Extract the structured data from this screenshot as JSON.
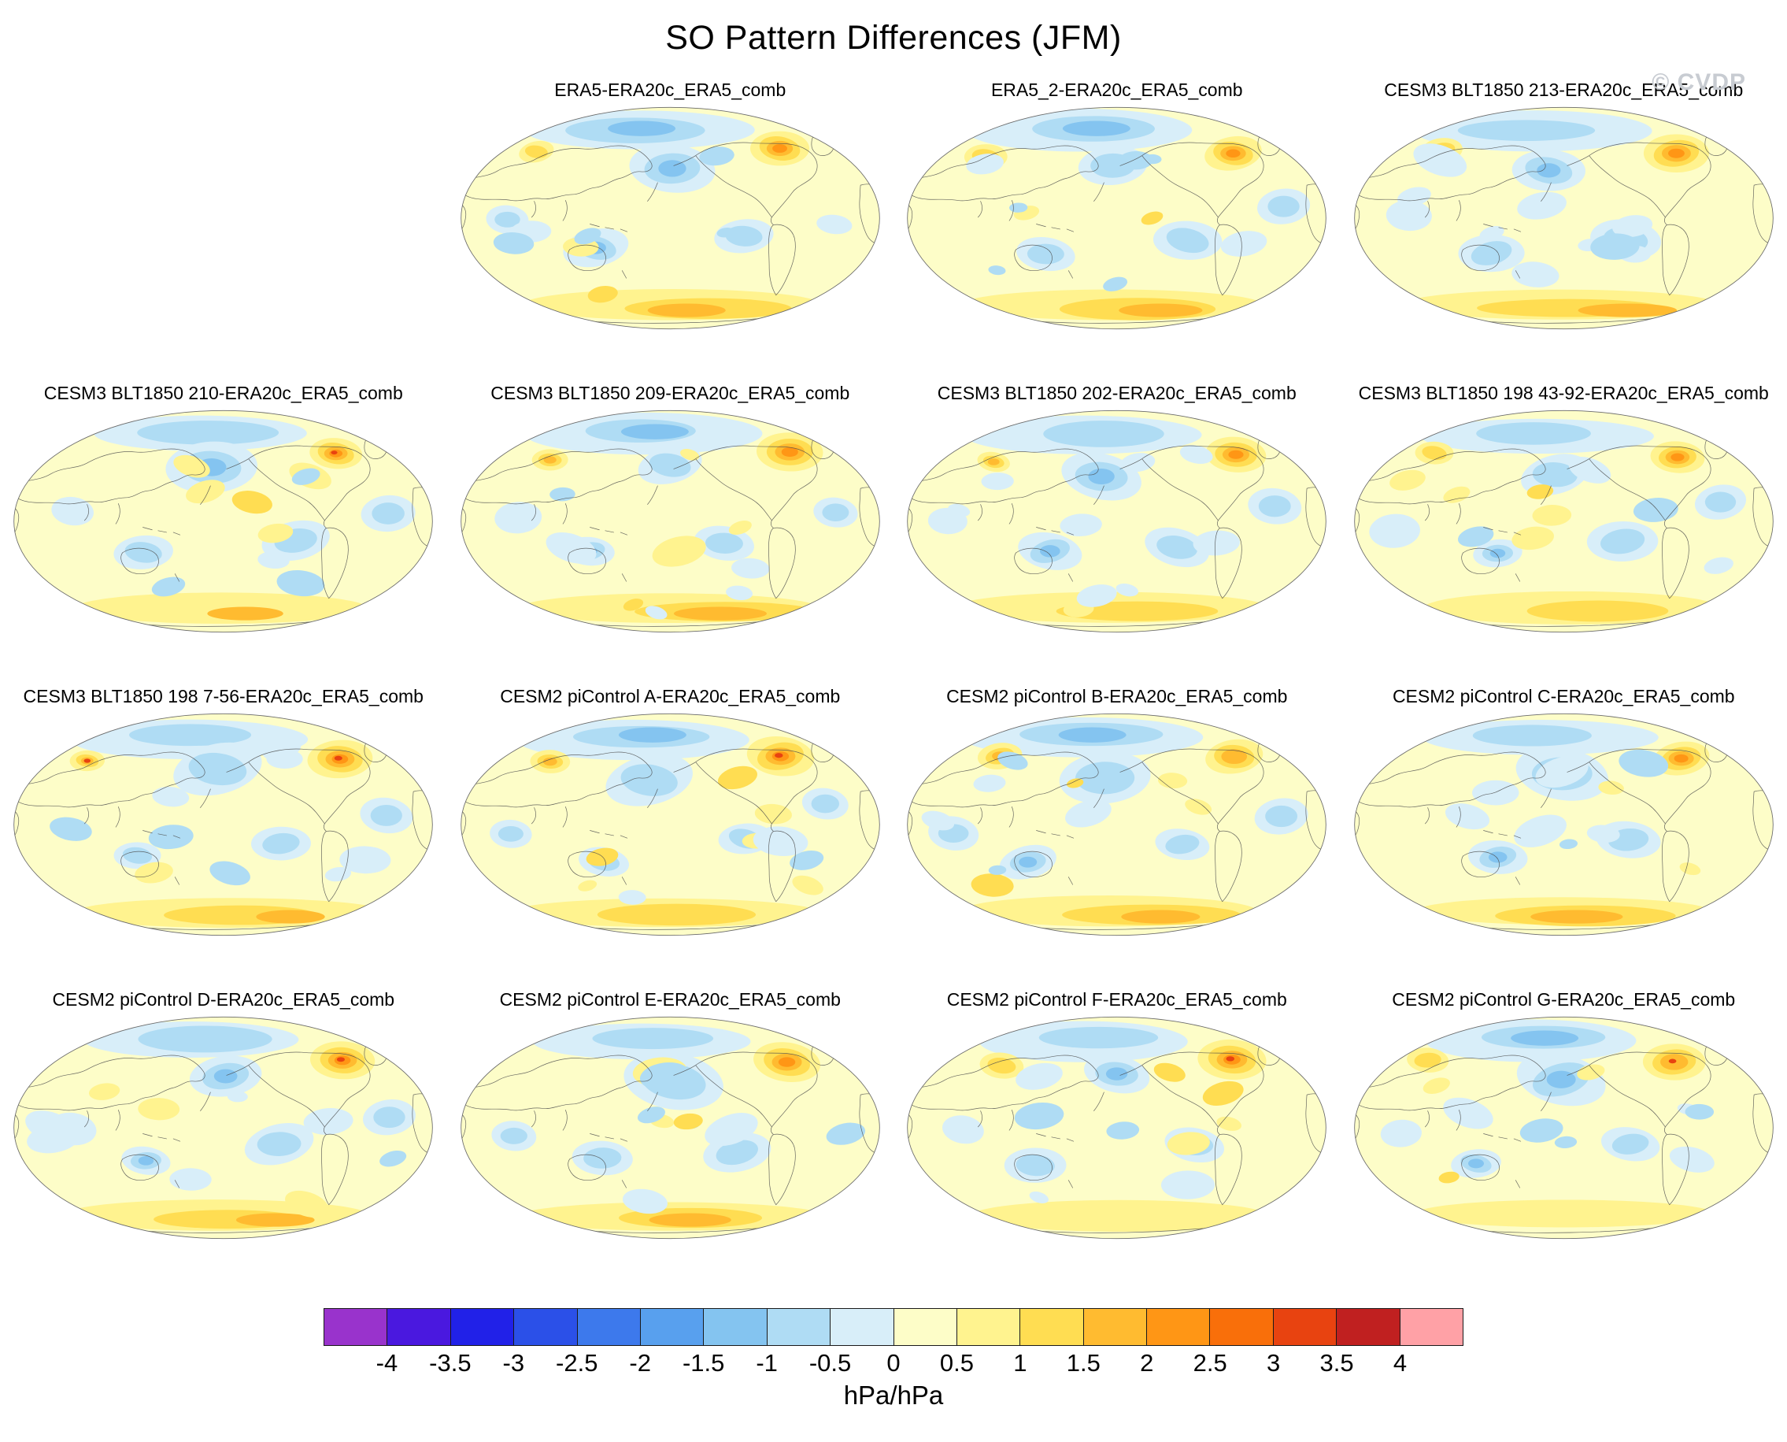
{
  "title": "SO Pattern Differences (JFM)",
  "watermark": "© CVDP",
  "units_label": "hPa/hPa",
  "panels": [
    {
      "title": "ERA5-ERA20c_ERA5_comb"
    },
    {
      "title": "ERA5_2-ERA20c_ERA5_comb"
    },
    {
      "title": "CESM3 BLT1850 213-ERA20c_ERA5_comb"
    },
    {
      "title": "CESM3 BLT1850 210-ERA20c_ERA5_comb"
    },
    {
      "title": "CESM3 BLT1850 209-ERA20c_ERA5_comb"
    },
    {
      "title": "CESM3 BLT1850 202-ERA20c_ERA5_comb"
    },
    {
      "title": "CESM3 BLT1850 198 43-92-ERA20c_ERA5_comb"
    },
    {
      "title": "CESM3 BLT1850 198 7-56-ERA20c_ERA5_comb"
    },
    {
      "title": "CESM2 piControl A-ERA20c_ERA5_comb"
    },
    {
      "title": "CESM2 piControl B-ERA20c_ERA5_comb"
    },
    {
      "title": "CESM2 piControl C-ERA20c_ERA5_comb"
    },
    {
      "title": "CESM2 piControl D-ERA20c_ERA5_comb"
    },
    {
      "title": "CESM2 piControl E-ERA20c_ERA5_comb"
    },
    {
      "title": "CESM2 piControl F-ERA20c_ERA5_comb"
    },
    {
      "title": "CESM2 piControl G-ERA20c_ERA5_comb"
    }
  ],
  "colorbar": {
    "tick_labels": [
      "-4",
      "-3.5",
      "-3",
      "-2.5",
      "-2",
      "-1.5",
      "-1",
      "-0.5",
      "0",
      "0.5",
      "1",
      "1.5",
      "2",
      "2.5",
      "3",
      "3.5",
      "4"
    ],
    "colors": [
      "#9933CC",
      "#4A18DF",
      "#2121E8",
      "#2B50E8",
      "#3D79EC",
      "#58A0EE",
      "#84C4F0",
      "#AFDCF4",
      "#D8EEF9",
      "#FDFDC8",
      "#FFF38F",
      "#FFDD52",
      "#FFBB30",
      "#FF9615",
      "#F96F0A",
      "#E84310",
      "#C02020",
      "#FFA1A6"
    ]
  },
  "chart_data": {
    "type": "heatmap",
    "title": "SO Pattern Differences (JFM)",
    "subtype": "filled-contour global maps (Pacific-centered oval projection) arranged in a 4x4 grid, first cell of top row empty",
    "panel_titles": [
      "ERA5-ERA20c_ERA5_comb",
      "ERA5_2-ERA20c_ERA5_comb",
      "CESM3 BLT1850 213-ERA20c_ERA5_comb",
      "CESM3 BLT1850 210-ERA20c_ERA5_comb",
      "CESM3 BLT1850 209-ERA20c_ERA5_comb",
      "CESM3 BLT1850 202-ERA20c_ERA5_comb",
      "CESM3 BLT1850 198 43-92-ERA20c_ERA5_comb",
      "CESM3 BLT1850 198 7-56-ERA20c_ERA5_comb",
      "CESM2 piControl A-ERA20c_ERA5_comb",
      "CESM2 piControl B-ERA20c_ERA5_comb",
      "CESM2 piControl C-ERA20c_ERA5_comb",
      "CESM2 piControl D-ERA20c_ERA5_comb",
      "CESM2 piControl E-ERA20c_ERA5_comb",
      "CESM2 piControl F-ERA20c_ERA5_comb",
      "CESM2 piControl G-ERA20c_ERA5_comb"
    ],
    "colorbar_levels": [
      -4,
      -3.5,
      -3,
      -2.5,
      -2,
      -1.5,
      -1,
      -0.5,
      0,
      0.5,
      1,
      1.5,
      2,
      2.5,
      3,
      3.5,
      4
    ],
    "colorbar_colors": [
      "#9933CC",
      "#4A18DF",
      "#2121E8",
      "#2B50E8",
      "#3D79EC",
      "#58A0EE",
      "#84C4F0",
      "#AFDCF4",
      "#D8EEF9",
      "#FDFDC8",
      "#FFF38F",
      "#FFDD52",
      "#FFBB30",
      "#FF9615",
      "#F96F0A",
      "#E84310",
      "#C02020",
      "#FFA1A6"
    ],
    "units": "hPa/hPa",
    "legend_position": "bottom",
    "watermark": "© CVDP"
  }
}
